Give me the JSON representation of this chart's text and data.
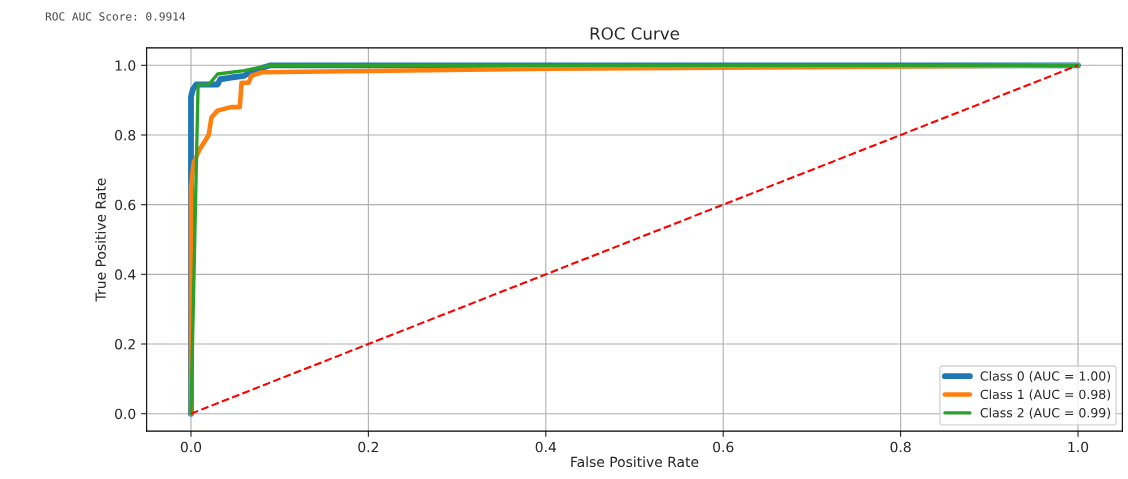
{
  "chart_data": {
    "type": "line",
    "title": "ROC Curve",
    "xlabel": "False Positive Rate",
    "ylabel": "True Positive Rate",
    "annotations": [
      "ROC AUC Score: 0.9914"
    ],
    "xlim": [
      -0.05,
      1.05
    ],
    "ylim": [
      -0.05,
      1.05
    ],
    "xticks": [
      {
        "value": 0,
        "label": "0.0"
      },
      0.2,
      0.4,
      0.6,
      0.8,
      {
        "value": 1,
        "label": "1.0"
      }
    ],
    "yticks": [
      {
        "value": 0,
        "label": "0.0"
      },
      0.2,
      0.4,
      0.6,
      0.8,
      {
        "value": 1,
        "label": "1.0"
      }
    ],
    "grid": true,
    "legend": "bottom right",
    "series": [
      {
        "name": "Class 0 (AUC = 1.00)",
        "color": "#1f77b4",
        "line_style": "solid",
        "x": [
          0,
          0,
          0.002,
          0.006,
          0.03,
          0.033,
          0.045,
          0.06,
          0.07,
          0.09,
          1
        ],
        "values": [
          0,
          0.91,
          0.93,
          0.945,
          0.945,
          0.96,
          0.965,
          0.97,
          0.985,
          1.0,
          1.0
        ]
      },
      {
        "name": "Class 1 (AUC = 0.98)",
        "color": "#ff7f0e",
        "line_style": "solid",
        "x": [
          0,
          0,
          0.003,
          0.01,
          0.02,
          0.023,
          0.03,
          0.045,
          0.055,
          0.057,
          0.065,
          0.068,
          0.08,
          0.4,
          1
        ],
        "values": [
          0,
          0.65,
          0.72,
          0.76,
          0.8,
          0.85,
          0.87,
          0.88,
          0.88,
          0.95,
          0.95,
          0.97,
          0.98,
          0.99,
          1.0
        ]
      },
      {
        "name": "Class 2 (AUC = 0.99)",
        "color": "#2ca02c",
        "line_style": "solid",
        "x": [
          0,
          0.008,
          0.02,
          0.025,
          0.03,
          0.06,
          0.09,
          1
        ],
        "values": [
          0,
          0.945,
          0.945,
          0.96,
          0.975,
          0.985,
          1.0,
          1.0
        ]
      },
      {
        "color": "#ff0000",
        "line_style": "dashed",
        "x": [
          0,
          1
        ],
        "values": [
          0,
          1
        ]
      }
    ]
  }
}
